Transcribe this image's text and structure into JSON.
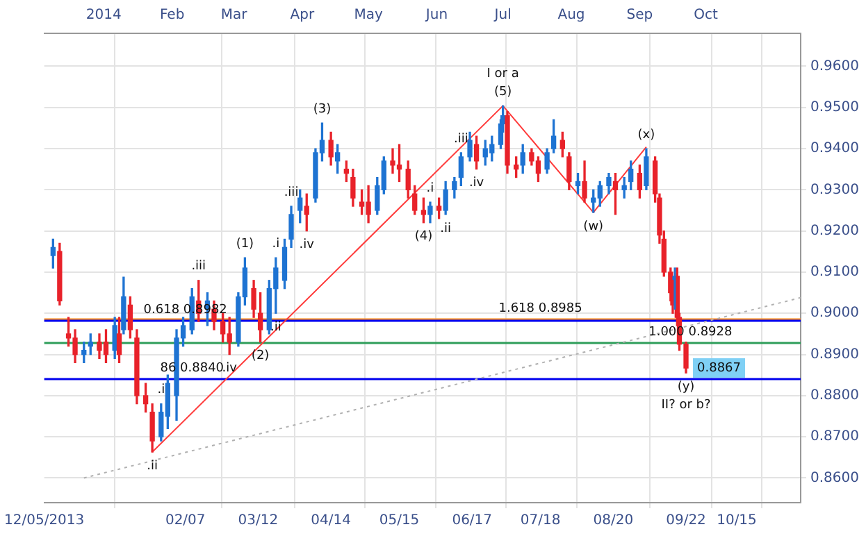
{
  "chart_data": {
    "type": "candlestick",
    "x": [
      "2013-12-09",
      "2013-12-12",
      "2013-12-16",
      "2013-12-19",
      "2013-12-23",
      "2013-12-26",
      "2013-12-30",
      "2014-01-02",
      "2014-01-06",
      "2014-01-08",
      "2014-01-10",
      "2014-01-13",
      "2014-01-16",
      "2014-01-20",
      "2014-01-23",
      "2014-01-27",
      "2014-01-30",
      "2014-02-03",
      "2014-02-06",
      "2014-02-10",
      "2014-02-13",
      "2014-02-17",
      "2014-02-20",
      "2014-02-24",
      "2014-02-27",
      "2014-03-03",
      "2014-03-06",
      "2014-03-10",
      "2014-03-13",
      "2014-03-17",
      "2014-03-20",
      "2014-03-24",
      "2014-03-27",
      "2014-03-31",
      "2014-04-03",
      "2014-04-07",
      "2014-04-10",
      "2014-04-14",
      "2014-04-17",
      "2014-04-21",
      "2014-04-24",
      "2014-04-28",
      "2014-05-01",
      "2014-05-05",
      "2014-05-08",
      "2014-05-12",
      "2014-05-15",
      "2014-05-19",
      "2014-05-22",
      "2014-05-26",
      "2014-05-29",
      "2014-06-02",
      "2014-06-05",
      "2014-06-09",
      "2014-06-12",
      "2014-06-16",
      "2014-06-19",
      "2014-06-23",
      "2014-06-26",
      "2014-06-30",
      "2014-07-01",
      "2014-07-03",
      "2014-07-07",
      "2014-07-10",
      "2014-07-14",
      "2014-07-17",
      "2014-07-21",
      "2014-07-24",
      "2014-07-28",
      "2014-07-31",
      "2014-08-04",
      "2014-08-07",
      "2014-08-11",
      "2014-08-14",
      "2014-08-18",
      "2014-08-21",
      "2014-08-25",
      "2014-08-28",
      "2014-09-01",
      "2014-09-04",
      "2014-09-08",
      "2014-09-10",
      "2014-09-12",
      "2014-09-15",
      "2014-09-16",
      "2014-09-17",
      "2014-09-18",
      "2014-09-19",
      "2014-09-22"
    ],
    "ohlc": [
      [
        0.914,
        0.918,
        0.911,
        0.916
      ],
      [
        0.915,
        0.917,
        0.902,
        0.903
      ],
      [
        0.895,
        0.899,
        0.892,
        0.894
      ],
      [
        0.894,
        0.896,
        0.888,
        0.89
      ],
      [
        0.89,
        0.893,
        0.888,
        0.891
      ],
      [
        0.892,
        0.895,
        0.89,
        0.893
      ],
      [
        0.893,
        0.895,
        0.889,
        0.891
      ],
      [
        0.893,
        0.896,
        0.888,
        0.89
      ],
      [
        0.891,
        0.899,
        0.889,
        0.897
      ],
      [
        0.895,
        0.899,
        0.888,
        0.89
      ],
      [
        0.896,
        0.9088,
        0.895,
        0.904
      ],
      [
        0.902,
        0.904,
        0.894,
        0.896
      ],
      [
        0.894,
        0.896,
        0.878,
        0.88
      ],
      [
        0.88,
        0.883,
        0.876,
        0.878
      ],
      [
        0.876,
        0.878,
        0.8663,
        0.869
      ],
      [
        0.87,
        0.878,
        0.869,
        0.876
      ],
      [
        0.875,
        0.885,
        0.872,
        0.883
      ],
      [
        0.88,
        0.896,
        0.874,
        0.894
      ],
      [
        0.894,
        0.899,
        0.892,
        0.897
      ],
      [
        0.896,
        0.906,
        0.895,
        0.904
      ],
      [
        0.903,
        0.908,
        0.898,
        0.9
      ],
      [
        0.901,
        0.905,
        0.897,
        0.903
      ],
      [
        0.901,
        0.903,
        0.896,
        0.898
      ],
      [
        0.898,
        0.9,
        0.893,
        0.895
      ],
      [
        0.895,
        0.899,
        0.89,
        0.893
      ],
      [
        0.893,
        0.905,
        0.892,
        0.904
      ],
      [
        0.904,
        0.9135,
        0.902,
        0.911
      ],
      [
        0.906,
        0.908,
        0.899,
        0.901
      ],
      [
        0.9,
        0.905,
        0.893,
        0.896
      ],
      [
        0.896,
        0.908,
        0.895,
        0.906
      ],
      [
        0.906,
        0.9135,
        0.9,
        0.911
      ],
      [
        0.908,
        0.918,
        0.906,
        0.916
      ],
      [
        0.918,
        0.926,
        0.916,
        0.924
      ],
      [
        0.925,
        0.93,
        0.922,
        0.928
      ],
      [
        0.926,
        0.929,
        0.92,
        0.924
      ],
      [
        0.928,
        0.94,
        0.927,
        0.939
      ],
      [
        0.939,
        0.9462,
        0.937,
        0.942
      ],
      [
        0.942,
        0.944,
        0.936,
        0.938
      ],
      [
        0.937,
        0.941,
        0.934,
        0.939
      ],
      [
        0.935,
        0.937,
        0.932,
        0.934
      ],
      [
        0.933,
        0.935,
        0.926,
        0.928
      ],
      [
        0.927,
        0.93,
        0.924,
        0.926
      ],
      [
        0.927,
        0.931,
        0.922,
        0.924
      ],
      [
        0.925,
        0.933,
        0.924,
        0.931
      ],
      [
        0.93,
        0.938,
        0.929,
        0.937
      ],
      [
        0.937,
        0.94,
        0.934,
        0.936
      ],
      [
        0.936,
        0.941,
        0.932,
        0.935
      ],
      [
        0.935,
        0.937,
        0.928,
        0.93
      ],
      [
        0.929,
        0.931,
        0.924,
        0.925
      ],
      [
        0.925,
        0.928,
        0.922,
        0.924
      ],
      [
        0.924,
        0.927,
        0.922,
        0.926
      ],
      [
        0.926,
        0.928,
        0.923,
        0.925
      ],
      [
        0.925,
        0.932,
        0.924,
        0.93
      ],
      [
        0.93,
        0.933,
        0.928,
        0.932
      ],
      [
        0.933,
        0.939,
        0.931,
        0.938
      ],
      [
        0.938,
        0.944,
        0.937,
        0.942
      ],
      [
        0.941,
        0.943,
        0.935,
        0.937
      ],
      [
        0.938,
        0.942,
        0.936,
        0.94
      ],
      [
        0.939,
        0.943,
        0.937,
        0.941
      ],
      [
        0.941,
        0.947,
        0.94,
        0.946
      ],
      [
        0.946,
        0.9504,
        0.944,
        0.948
      ],
      [
        0.948,
        0.949,
        0.934,
        0.936
      ],
      [
        0.936,
        0.938,
        0.933,
        0.935
      ],
      [
        0.936,
        0.941,
        0.934,
        0.939
      ],
      [
        0.939,
        0.94,
        0.936,
        0.937
      ],
      [
        0.937,
        0.938,
        0.932,
        0.934
      ],
      [
        0.935,
        0.94,
        0.934,
        0.939
      ],
      [
        0.94,
        0.947,
        0.939,
        0.943
      ],
      [
        0.942,
        0.944,
        0.938,
        0.94
      ],
      [
        0.938,
        0.939,
        0.93,
        0.932
      ],
      [
        0.931,
        0.934,
        0.929,
        0.932
      ],
      [
        0.932,
        0.937,
        0.927,
        0.928
      ],
      [
        0.927,
        0.93,
        0.9245,
        0.928
      ],
      [
        0.928,
        0.932,
        0.926,
        0.931
      ],
      [
        0.931,
        0.934,
        0.929,
        0.933
      ],
      [
        0.932,
        0.934,
        0.924,
        0.93
      ],
      [
        0.93,
        0.933,
        0.928,
        0.931
      ],
      [
        0.932,
        0.937,
        0.93,
        0.935
      ],
      [
        0.934,
        0.936,
        0.928,
        0.93
      ],
      [
        0.931,
        0.94,
        0.93,
        0.938
      ],
      [
        0.937,
        0.938,
        0.927,
        0.929
      ],
      [
        0.928,
        0.929,
        0.917,
        0.919
      ],
      [
        0.918,
        0.92,
        0.909,
        0.91
      ],
      [
        0.91,
        0.911,
        0.903,
        0.905
      ],
      [
        0.905,
        0.908,
        0.9,
        0.902
      ],
      [
        0.902,
        0.911,
        0.901,
        0.909
      ],
      [
        0.909,
        0.911,
        0.897,
        0.899
      ],
      [
        0.899,
        0.9,
        0.891,
        0.8925
      ],
      [
        0.8925,
        0.893,
        0.8855,
        0.8867
      ]
    ],
    "colors": [
      "#1e73d2",
      "#e8222a",
      "#e8222a",
      "#e8222a",
      "#1e73d2",
      "#1e73d2",
      "#e8222a",
      "#e8222a",
      "#1e73d2",
      "#e8222a",
      "#1e73d2",
      "#e8222a",
      "#e8222a",
      "#e8222a",
      "#e8222a",
      "#1e73d2",
      "#1e73d2",
      "#1e73d2",
      "#1e73d2",
      "#1e73d2",
      "#e8222a",
      "#1e73d2",
      "#e8222a",
      "#e8222a",
      "#e8222a",
      "#1e73d2",
      "#1e73d2",
      "#e8222a",
      "#e8222a",
      "#1e73d2",
      "#1e73d2",
      "#1e73d2",
      "#1e73d2",
      "#1e73d2",
      "#e8222a",
      "#1e73d2",
      "#1e73d2",
      "#e8222a",
      "#1e73d2",
      "#e8222a",
      "#e8222a",
      "#e8222a",
      "#e8222a",
      "#1e73d2",
      "#1e73d2",
      "#e8222a",
      "#e8222a",
      "#e8222a",
      "#e8222a",
      "#e8222a",
      "#1e73d2",
      "#e8222a",
      "#1e73d2",
      "#1e73d2",
      "#1e73d2",
      "#1e73d2",
      "#e8222a",
      "#1e73d2",
      "#1e73d2",
      "#1e73d2",
      "#1e73d2",
      "#e8222a",
      "#e8222a",
      "#1e73d2",
      "#e8222a",
      "#e8222a",
      "#1e73d2",
      "#1e73d2",
      "#e8222a",
      "#e8222a",
      "#1e73d2",
      "#e8222a",
      "#1e73d2",
      "#1e73d2",
      "#1e73d2",
      "#e8222a",
      "#1e73d2",
      "#1e73d2",
      "#e8222a",
      "#1e73d2",
      "#e8222a",
      "#e8222a",
      "#e8222a",
      "#e8222a",
      "#e8222a",
      "#1e73d2",
      "#e8222a",
      "#e8222a",
      "#e8222a"
    ],
    "series": [
      {
        "type": "line",
        "color": "#ff3b3b",
        "x": [
          "2014-01-23",
          "2014-07-01",
          "2014-08-11",
          "2014-09-04"
        ],
        "values": [
          0.8663,
          0.9504,
          0.9245,
          0.9404
        ]
      },
      {
        "type": "line",
        "color": "#b0b0b0",
        "line_style": "dotted",
        "x": [
          "2013-12-23",
          "2014-11-13"
        ],
        "values": [
          0.86,
          0.9038
        ]
      }
    ],
    "ref_lines": [
      {
        "axis": "y",
        "value": 0.8985,
        "color": "#ff8c1a"
      },
      {
        "axis": "y",
        "value": 0.8982,
        "color": "#0000ee"
      },
      {
        "axis": "y",
        "value": 0.8928,
        "color": "#2e9e5a"
      },
      {
        "axis": "y",
        "value": 0.884,
        "color": "#0000ee"
      }
    ],
    "annotations": [
      {
        "text": "0.618 0.8982",
        "x": "2014-02-07",
        "y": 0.8982
      },
      {
        "text": "1.618 0.8985",
        "x": "2014-07-18",
        "y": 0.8985
      },
      {
        "text": "1.000 0.8928",
        "x": "2014-09-24",
        "y": 0.8928
      },
      {
        "text": "86 0.8840",
        "x": "2014-02-10",
        "y": 0.884
      },
      {
        "text": "0.8867",
        "x": "2014-09-22",
        "y": 0.8867
      },
      {
        "text": "(5)",
        "x": "2014-07-01",
        "y": 0.9504
      },
      {
        "text": "I or a",
        "x": "2014-07-01",
        "y": 0.9504
      },
      {
        "text": "(y)",
        "x": "2014-09-22",
        "y": 0.8855
      },
      {
        "text": "II? or b?",
        "x": "2014-09-22",
        "y": 0.8855
      },
      {
        "text": "(1)",
        "x": "2014-03-06",
        "y": 0.9135
      },
      {
        "text": "(2)",
        "x": "2014-03-13",
        "y": 0.893
      },
      {
        "text": "(3)",
        "x": "2014-04-10",
        "y": 0.9462
      },
      {
        "text": "(4)",
        "x": "2014-05-26",
        "y": 0.922
      },
      {
        "text": "(w)",
        "x": "2014-08-11",
        "y": 0.9245
      },
      {
        "text": "(x)",
        "x": "2014-09-04",
        "y": 0.94
      },
      {
        "text": ".iii",
        "x": "2014-02-13",
        "y": 0.908
      },
      {
        "text": ".i",
        "x": "2014-03-20",
        "y": 0.9135
      },
      {
        "text": ".iv",
        "x": "2014-02-27",
        "y": 0.89
      },
      {
        "text": ".i",
        "x": "2014-01-27",
        "y": 0.878
      },
      {
        "text": ".ii",
        "x": "2014-01-23",
        "y": 0.8663
      },
      {
        "text": ".ii",
        "x": "2014-03-20",
        "y": 0.9
      },
      {
        "text": ".iii",
        "x": "2014-03-27",
        "y": 0.926
      },
      {
        "text": ".iv",
        "x": "2014-04-03",
        "y": 0.92
      },
      {
        "text": ".i",
        "x": "2014-05-29",
        "y": 0.927
      },
      {
        "text": ".ii",
        "x": "2014-06-05",
        "y": 0.924
      },
      {
        "text": ".iii",
        "x": "2014-06-12",
        "y": 0.939
      },
      {
        "text": ".iv",
        "x": "2014-06-19",
        "y": 0.935
      }
    ],
    "xlim": [
      "2013-12-05",
      "2014-11-13"
    ],
    "xticks": [
      {
        "value": "2013-12-05",
        "label": "12/05/2013"
      },
      {
        "value": "2014-02-07",
        "label": "02/07"
      },
      {
        "value": "2014-03-12",
        "label": "03/12"
      },
      {
        "value": "2014-04-14",
        "label": "04/14"
      },
      {
        "value": "2014-05-15",
        "label": "05/15"
      },
      {
        "value": "2014-06-17",
        "label": "06/17"
      },
      {
        "value": "2014-07-18",
        "label": "07/18"
      },
      {
        "value": "2014-08-20",
        "label": "08/20"
      },
      {
        "value": "2014-09-22",
        "label": "09/22"
      },
      {
        "value": "2014-10-15",
        "label": "10/15"
      }
    ],
    "x2lim": [
      "2013-12-05",
      "2014-11-13"
    ],
    "x2ticks": [
      {
        "value": "2014-01-01",
        "label": "2014"
      },
      {
        "value": "2014-02-01",
        "label": "Feb"
      },
      {
        "value": "2014-03-01",
        "label": "Mar"
      },
      {
        "value": "2014-04-01",
        "label": "Apr"
      },
      {
        "value": "2014-05-01",
        "label": "May"
      },
      {
        "value": "2014-06-01",
        "label": "Jun"
      },
      {
        "value": "2014-07-01",
        "label": "Jul"
      },
      {
        "value": "2014-08-01",
        "label": "Aug"
      },
      {
        "value": "2014-09-01",
        "label": "Sep"
      },
      {
        "value": "2014-10-01",
        "label": "Oct"
      }
    ],
    "ylim": [
      0.854,
      0.968
    ],
    "yticks": [
      {
        "value": 0.86,
        "label": "0.8600"
      },
      {
        "value": 0.87,
        "label": "0.8700"
      },
      {
        "value": 0.88,
        "label": "0.8800"
      },
      {
        "value": 0.89,
        "label": "0.8900"
      },
      {
        "value": 0.9,
        "label": "0.9000"
      },
      {
        "value": 0.91,
        "label": "0.9100"
      },
      {
        "value": 0.92,
        "label": "0.9200"
      },
      {
        "value": 0.93,
        "label": "0.9300"
      },
      {
        "value": 0.94,
        "label": "0.9400"
      },
      {
        "value": 0.95,
        "label": "0.9500"
      },
      {
        "value": 0.96,
        "label": "0.9600"
      }
    ],
    "grid": true
  }
}
